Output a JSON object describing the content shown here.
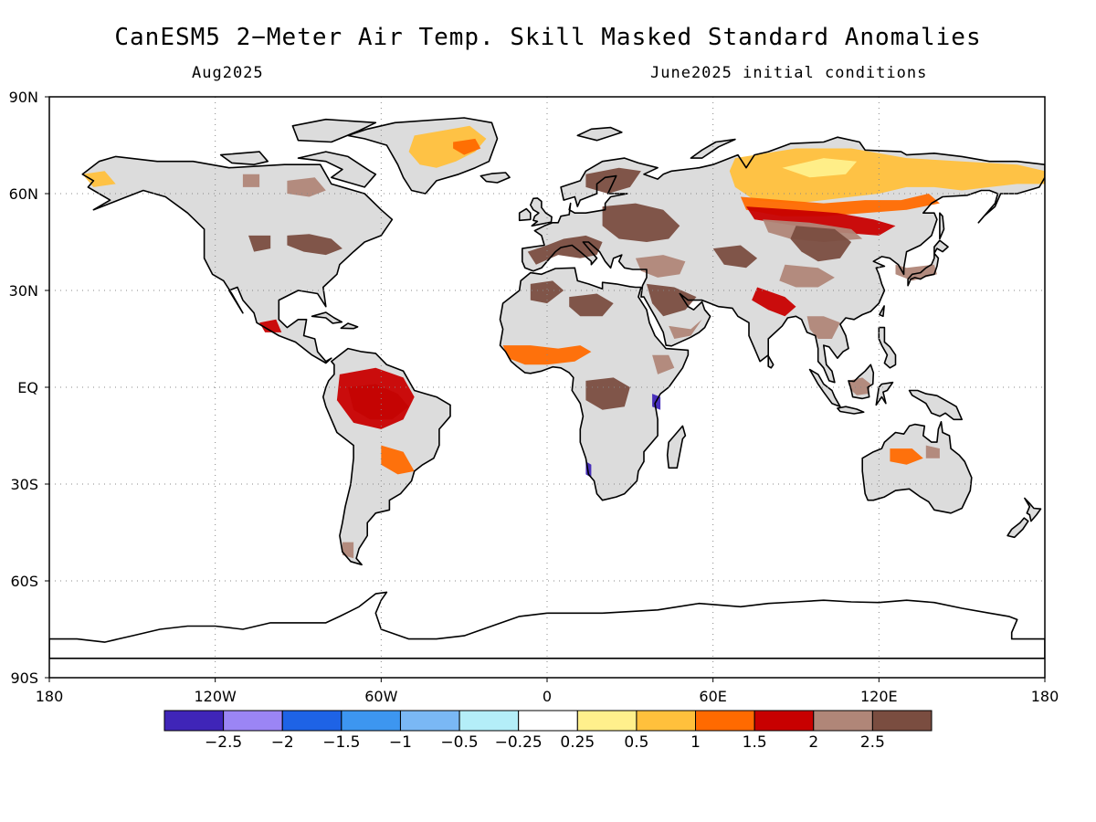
{
  "header": {
    "title": "CanESM5 2−Meter Air Temp. Skill Masked Standard Anomalies",
    "valid_month": "Aug2025",
    "initial_conditions": "June2025 initial conditions"
  },
  "map": {
    "projection": "equirectangular",
    "lon_range": [
      -180,
      180
    ],
    "lat_range": [
      -90,
      90
    ],
    "land_masked_color": "#dcdcdc",
    "ocean_color": "#ffffff",
    "coastline_color": "#000000",
    "grid": "dotted",
    "lon_ticks": [
      {
        "value": -180,
        "label": "180"
      },
      {
        "value": -120,
        "label": "120W"
      },
      {
        "value": -60,
        "label": "60W"
      },
      {
        "value": 0,
        "label": "0"
      },
      {
        "value": 60,
        "label": "60E"
      },
      {
        "value": 120,
        "label": "120E"
      },
      {
        "value": 180,
        "label": "180"
      }
    ],
    "lat_ticks": [
      {
        "value": 90,
        "label": "90N"
      },
      {
        "value": 60,
        "label": "60N"
      },
      {
        "value": 30,
        "label": "30N"
      },
      {
        "value": 0,
        "label": "EQ"
      },
      {
        "value": -30,
        "label": "30S"
      },
      {
        "value": -60,
        "label": "60S"
      },
      {
        "value": -90,
        "label": "90S"
      }
    ]
  },
  "colorbar": {
    "colors": [
      "#3f25b8",
      "#9b85f5",
      "#1e63e6",
      "#3d96f0",
      "#7ab8f5",
      "#b4eef8",
      "#ffffff",
      "#fff08c",
      "#ffc03c",
      "#ff6a00",
      "#c80000",
      "#b08678",
      "#7a4d40"
    ],
    "labels": [
      "−2.5",
      "−2",
      "−1.5",
      "−1",
      "−0.5",
      "−0.25",
      "0.25",
      "0.5",
      "1",
      "1.5",
      "2",
      "2.5"
    ]
  },
  "anomaly_regions": [
    {
      "name": "Greenland",
      "level": "0.5"
    },
    {
      "name": "Central Siberia",
      "level": "0.5"
    },
    {
      "name": "Eastern Europe",
      "level": "2.5"
    },
    {
      "name": "Mongolia / Central Asia",
      "level": "2.5"
    },
    {
      "name": "Amazon",
      "level": "2.5"
    },
    {
      "name": "Great Lakes",
      "level": "2.5"
    },
    {
      "name": "West Africa Sahel",
      "level": "1"
    },
    {
      "name": "Congo Basin",
      "level": "2.5"
    },
    {
      "name": "Southern Africa coast",
      "level": "-1"
    },
    {
      "name": "Borneo",
      "level": "2"
    }
  ]
}
